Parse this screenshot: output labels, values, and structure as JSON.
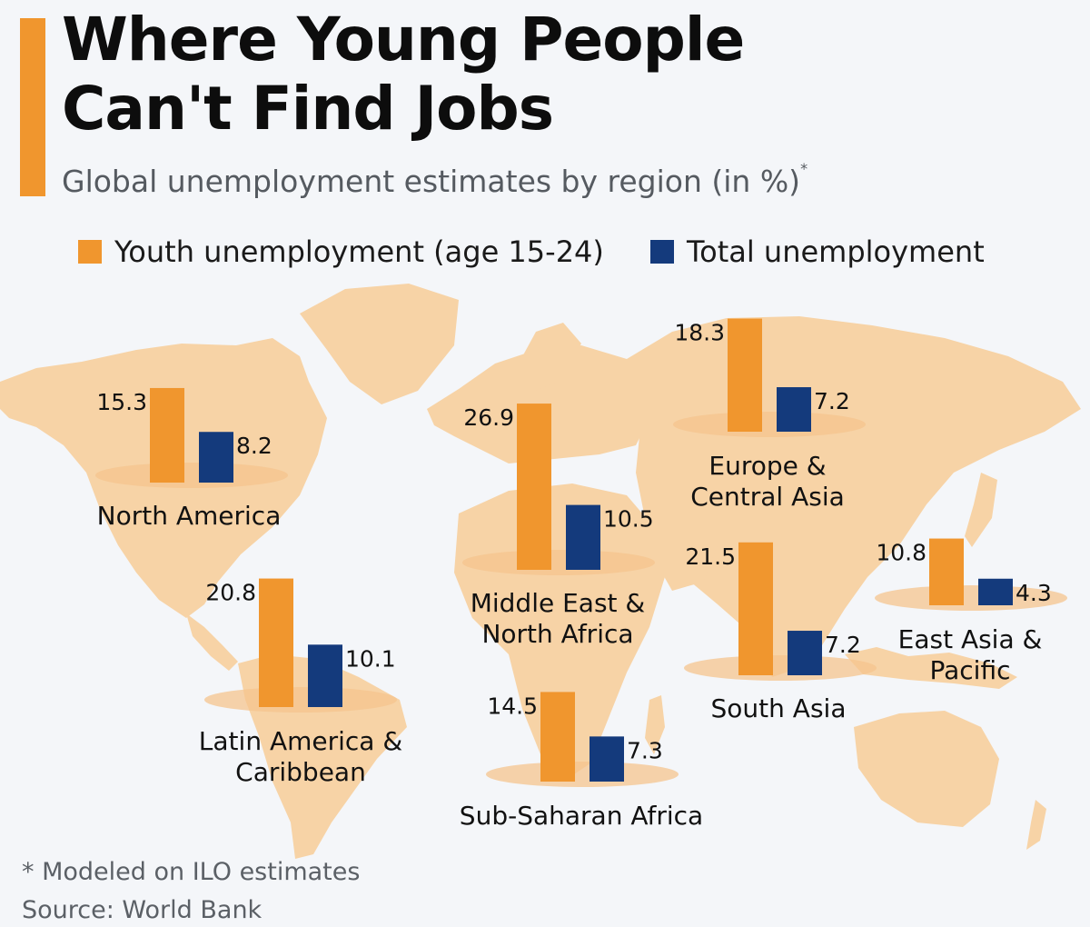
{
  "title_lines": [
    "Where Young People",
    "Can't Find Jobs"
  ],
  "subtitle": "Global unemployment estimates by region (in %)",
  "subtitle_mark": "*",
  "legend": [
    {
      "label": "Youth unemployment (age 15-24)",
      "color": "#f0962e"
    },
    {
      "label": "Total unemployment",
      "color": "#143a7c"
    }
  ],
  "footnote": "* Modeled on ILO estimates",
  "source": "Source: World Bank",
  "colors": {
    "youth": "#f0962e",
    "total": "#143a7c",
    "map_land": "#f7d3a6",
    "background": "#f4f6f9"
  },
  "chart_data": {
    "type": "bar",
    "title": "Where Young People Can't Find Jobs",
    "subtitle": "Global unemployment estimates by region (in %)",
    "categories": [
      "North America",
      "Europe & Central Asia",
      "Middle East & North Africa",
      "Latin America & Caribbean",
      "South Asia",
      "East Asia & Pacific",
      "Sub-Saharan Africa"
    ],
    "category_lines": [
      [
        "North America"
      ],
      [
        "Europe &",
        "Central Asia"
      ],
      [
        "Middle East &",
        "North Africa"
      ],
      [
        "Latin America &",
        "Caribbean"
      ],
      [
        "South Asia"
      ],
      [
        "East Asia &",
        "Pacific"
      ],
      [
        "Sub-Saharan Africa"
      ]
    ],
    "series": [
      {
        "name": "Youth unemployment (age 15-24)",
        "values": [
          15.3,
          18.3,
          26.9,
          20.8,
          21.5,
          10.8,
          14.5
        ]
      },
      {
        "name": "Total unemployment",
        "values": [
          8.2,
          7.2,
          10.5,
          10.1,
          7.2,
          4.3,
          7.3
        ]
      }
    ],
    "value_labels": {
      "youth": [
        "15.3",
        "18.3",
        "26.9",
        "20.8",
        "21.5",
        "10.8",
        "14.5"
      ],
      "total": [
        "8.2",
        "7.2",
        "10.5",
        "10.1",
        "7.2",
        "4.3",
        "7.3"
      ]
    },
    "units": "%",
    "background": "world map",
    "legend_position": "top",
    "grid": false
  }
}
